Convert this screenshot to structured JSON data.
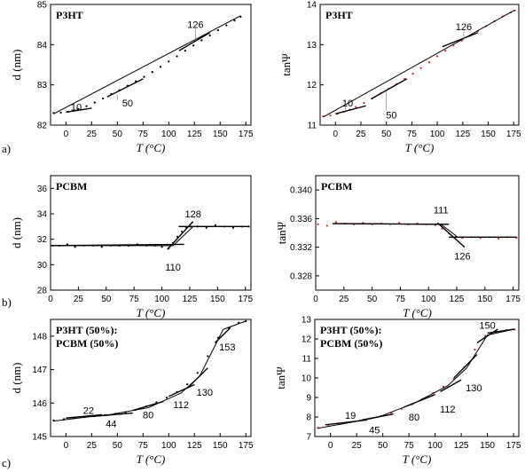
{
  "row_labels": [
    "a)",
    "b)",
    "c)"
  ],
  "chart_data": [
    {
      "type": "scatter",
      "title": [
        "P3HT"
      ],
      "xlabel": "T (°C)",
      "ylabel": "d (nm)",
      "xlim": [
        -15,
        180
      ],
      "ylim": [
        82,
        85
      ],
      "xticks": [
        0,
        25,
        50,
        75,
        100,
        125,
        150,
        175
      ],
      "yticks": [
        82,
        83,
        84,
        85
      ],
      "point_color": "#000000",
      "points": {
        "x": [
          -12,
          -5,
          2,
          8,
          12,
          20,
          28,
          36,
          44,
          52,
          60,
          68,
          76,
          84,
          92,
          100,
          108,
          116,
          124,
          132,
          140,
          148,
          156,
          164,
          170
        ],
        "y": [
          82.3,
          82.31,
          82.33,
          82.36,
          82.4,
          82.47,
          82.56,
          82.66,
          82.77,
          82.87,
          82.98,
          83.09,
          83.2,
          83.32,
          83.45,
          83.58,
          83.71,
          83.85,
          83.98,
          84.11,
          84.23,
          84.36,
          84.48,
          84.6,
          84.69
        ]
      },
      "series": [
        {
          "values_x": [
            -12,
            170
          ],
          "values_y": [
            82.28,
            84.72
          ]
        }
      ],
      "fits": [
        [
          [
            0,
            82.32
          ],
          [
            25,
            82.42
          ]
        ],
        [
          [
            40,
            82.7
          ],
          [
            75,
            83.15
          ]
        ],
        [
          [
            110,
            83.85
          ],
          [
            140,
            84.3
          ]
        ]
      ],
      "annotations": [
        {
          "text": "10",
          "x": 10,
          "y": 82.45,
          "lead": [
            [
              10,
              82.42
            ],
            [
              10,
              82.38
            ]
          ]
        },
        {
          "text": "50",
          "x": 60,
          "y": 82.55,
          "lead": [
            [
              50,
              82.62
            ],
            [
              50,
              82.75
            ]
          ]
        },
        {
          "text": "126",
          "x": 126,
          "y": 84.5,
          "lead": [
            [
              126,
              84.38
            ],
            [
              126,
              84.1
            ]
          ]
        }
      ]
    },
    {
      "type": "scatter",
      "title": [
        "P3HT"
      ],
      "xlabel": "T (°C)",
      "ylabel": "tanΨ",
      "xlim": [
        -15,
        180
      ],
      "ylim": [
        11,
        14
      ],
      "xticks": [
        0,
        25,
        50,
        75,
        100,
        125,
        150,
        175
      ],
      "yticks": [
        11,
        12,
        13,
        14
      ],
      "point_color": "#e0201e",
      "points": {
        "x": [
          -12,
          -5,
          2,
          8,
          14,
          20,
          28,
          36,
          44,
          52,
          60,
          68,
          76,
          84,
          92,
          100,
          108,
          116,
          124,
          132,
          140,
          148,
          156,
          164,
          172,
          176
        ],
        "y": [
          11.22,
          11.24,
          11.28,
          11.33,
          11.38,
          11.45,
          11.55,
          11.66,
          11.78,
          11.9,
          12.02,
          12.15,
          12.28,
          12.42,
          12.56,
          12.71,
          12.85,
          12.98,
          13.1,
          13.22,
          13.34,
          13.46,
          13.58,
          13.7,
          13.8,
          13.85
        ]
      },
      "series": [
        {
          "values_x": [
            -12,
            176
          ],
          "values_y": [
            11.2,
            13.86
          ]
        }
      ],
      "fits": [
        [
          [
            0,
            11.28
          ],
          [
            30,
            11.48
          ]
        ],
        [
          [
            35,
            11.65
          ],
          [
            70,
            12.15
          ]
        ],
        [
          [
            105,
            12.95
          ],
          [
            140,
            13.3
          ]
        ]
      ],
      "annotations": [
        {
          "text": "10",
          "x": 12,
          "y": 11.55,
          "lead": [
            [
              10,
              11.5
            ],
            [
              10,
              11.35
            ]
          ]
        },
        {
          "text": "50",
          "x": 55,
          "y": 11.25,
          "lead": [
            [
              50,
              11.35
            ],
            [
              50,
              11.85
            ]
          ]
        },
        {
          "text": "126",
          "x": 126,
          "y": 13.45,
          "lead": [
            [
              126,
              13.35
            ],
            [
              126,
              13.1
            ]
          ]
        }
      ]
    },
    {
      "type": "scatter",
      "title": [
        "PCBM"
      ],
      "xlabel": "T (°C)",
      "ylabel": "d (nm)",
      "xlim": [
        0,
        180
      ],
      "ylim": [
        28,
        37
      ],
      "xticks": [
        0,
        25,
        50,
        75,
        100,
        125,
        150,
        175
      ],
      "yticks": [
        28,
        30,
        32,
        34,
        36
      ],
      "point_color": "#000000",
      "points": {
        "x": [
          2,
          8,
          15,
          22,
          30,
          38,
          46,
          54,
          62,
          70,
          78,
          86,
          94,
          100,
          106,
          110,
          114,
          118,
          122,
          126,
          132,
          140,
          148,
          156,
          164,
          172,
          178
        ],
        "y": [
          31.5,
          31.5,
          31.6,
          31.4,
          31.5,
          31.5,
          31.4,
          31.5,
          31.5,
          31.5,
          31.6,
          31.5,
          31.5,
          31.4,
          31.3,
          31.7,
          32.2,
          32.6,
          32.9,
          33.0,
          33.0,
          32.9,
          33.1,
          33.0,
          32.9,
          33.0,
          33.0
        ]
      },
      "series": [
        {
          "values_x": [
            0,
            110,
            128,
            178
          ],
          "values_y": [
            31.5,
            31.5,
            33.0,
            33.0
          ]
        }
      ],
      "fits": [
        [
          [
            0,
            31.5
          ],
          [
            120,
            31.6
          ]
        ],
        [
          [
            105,
            31.2
          ],
          [
            128,
            33.4
          ]
        ],
        [
          [
            115,
            33.0
          ],
          [
            178,
            33.0
          ]
        ]
      ],
      "annotations": [
        {
          "text": "128",
          "x": 128,
          "y": 34.0
        },
        {
          "text": "110",
          "x": 110,
          "y": 29.8
        }
      ]
    },
    {
      "type": "scatter",
      "title": [
        "PCBM"
      ],
      "xlabel": "T (°C)",
      "ylabel": "tanΨ",
      "xlim": [
        0,
        180
      ],
      "ylim": [
        0.326,
        0.342
      ],
      "xticks": [
        0,
        25,
        50,
        75,
        100,
        125,
        150,
        175
      ],
      "yticks": [
        0.328,
        0.332,
        0.336,
        0.34
      ],
      "point_color": "#e0201e",
      "points": {
        "x": [
          2,
          10,
          18,
          26,
          34,
          42,
          50,
          58,
          66,
          74,
          82,
          90,
          98,
          106,
          112,
          118,
          124,
          130,
          138,
          146,
          154,
          162,
          170,
          178
        ],
        "y": [
          0.3352,
          0.335,
          0.3355,
          0.3353,
          0.3352,
          0.3354,
          0.3352,
          0.3353,
          0.3352,
          0.3354,
          0.3352,
          0.3353,
          0.3352,
          0.3351,
          0.3346,
          0.3339,
          0.3334,
          0.3333,
          0.3334,
          0.3333,
          0.3334,
          0.3332,
          0.3334,
          0.3333
        ]
      },
      "series": [
        {
          "values_x": [
            15,
            111,
            126,
            178
          ],
          "values_y": [
            0.3353,
            0.3352,
            0.3334,
            0.3334
          ]
        }
      ],
      "fits": [
        [
          [
            15,
            0.3353
          ],
          [
            118,
            0.3352
          ]
        ],
        [
          [
            108,
            0.3354
          ],
          [
            132,
            0.332
          ]
        ],
        [
          [
            118,
            0.3334
          ],
          [
            178,
            0.3334
          ]
        ]
      ],
      "annotations": [
        {
          "text": "111",
          "x": 111,
          "y": 0.3372
        },
        {
          "text": "126",
          "x": 130,
          "y": 0.3308
        }
      ]
    },
    {
      "type": "scatter",
      "title": [
        "P3HT (50%):",
        "PCBM (50%)"
      ],
      "xlabel": "T (°C)",
      "ylabel": "d (nm)",
      "xlim": [
        -15,
        180
      ],
      "ylim": [
        145,
        148.5
      ],
      "xticks": [
        0,
        25,
        50,
        75,
        100,
        125,
        150,
        175
      ],
      "yticks": [
        145,
        146,
        147,
        148
      ],
      "point_color": "#000000",
      "points": {
        "x": [
          -12,
          -2,
          8,
          18,
          28,
          38,
          48,
          58,
          68,
          78,
          88,
          98,
          108,
          118,
          128,
          138,
          148,
          158,
          168,
          175
        ],
        "y": [
          145.48,
          145.52,
          145.55,
          145.58,
          145.61,
          145.64,
          145.68,
          145.73,
          145.8,
          145.9,
          146.02,
          146.16,
          146.33,
          146.56,
          146.9,
          147.4,
          147.95,
          148.25,
          148.4,
          148.45
        ]
      },
      "series": [
        {
          "values_x": [
            -12,
            20,
            44,
            80,
            112,
            130,
            153,
            175
          ],
          "values_y": [
            145.46,
            145.58,
            145.66,
            145.86,
            146.3,
            146.8,
            148.2,
            148.45
          ]
        }
      ],
      "fits": [
        [
          [
            0,
            145.55
          ],
          [
            35,
            145.65
          ]
        ],
        [
          [
            25,
            145.6
          ],
          [
            65,
            145.7
          ]
        ],
        [
          [
            65,
            145.78
          ],
          [
            95,
            146.05
          ]
        ],
        [
          [
            100,
            146.2
          ],
          [
            125,
            146.55
          ]
        ],
        [
          [
            120,
            146.5
          ],
          [
            138,
            147.05
          ]
        ],
        [
          [
            145,
            147.8
          ],
          [
            160,
            148.25
          ]
        ]
      ],
      "annotations": [
        {
          "text": "22",
          "x": 22,
          "y": 145.78
        },
        {
          "text": "44",
          "x": 44,
          "y": 145.38
        },
        {
          "text": "80",
          "x": 80,
          "y": 145.65
        },
        {
          "text": "112",
          "x": 112,
          "y": 145.95
        },
        {
          "text": "130",
          "x": 135,
          "y": 146.32
        },
        {
          "text": "153",
          "x": 157,
          "y": 147.68
        }
      ]
    },
    {
      "type": "scatter",
      "title": [
        "P3HT (50%):",
        "PCBM (50%)"
      ],
      "xlabel": "T (°C)",
      "ylabel": "tanΨ",
      "xlim": [
        -15,
        180
      ],
      "ylim": [
        7,
        13
      ],
      "xticks": [
        0,
        25,
        50,
        75,
        100,
        125,
        150,
        175
      ],
      "yticks": [
        7,
        8,
        9,
        10,
        11,
        12,
        13
      ],
      "point_color": "#e0201e",
      "points": {
        "x": [
          -12,
          -2,
          8,
          18,
          28,
          38,
          48,
          58,
          68,
          78,
          88,
          98,
          108,
          118,
          128,
          138,
          148,
          158,
          168,
          176
        ],
        "y": [
          7.45,
          7.55,
          7.65,
          7.73,
          7.82,
          7.92,
          8.05,
          8.22,
          8.42,
          8.65,
          8.92,
          9.22,
          9.55,
          9.95,
          10.55,
          11.45,
          12.15,
          12.4,
          12.45,
          12.48
        ]
      },
      "series": [
        {
          "values_x": [
            -12,
            19,
            45,
            80,
            112,
            130,
            150,
            176
          ],
          "values_y": [
            7.42,
            7.72,
            7.98,
            8.7,
            9.6,
            10.5,
            12.2,
            12.5
          ]
        }
      ],
      "fits": [
        [
          [
            -5,
            7.6
          ],
          [
            35,
            7.85
          ]
        ],
        [
          [
            30,
            7.85
          ],
          [
            60,
            8.15
          ]
        ],
        [
          [
            70,
            8.5
          ],
          [
            100,
            9.15
          ]
        ],
        [
          [
            105,
            9.3
          ],
          [
            125,
            9.9
          ]
        ],
        [
          [
            118,
            10.0
          ],
          [
            140,
            11.2
          ]
        ],
        [
          [
            140,
            11.8
          ],
          [
            160,
            12.5
          ]
        ],
        [
          [
            150,
            12.3
          ],
          [
            176,
            12.5
          ]
        ]
      ],
      "annotations": [
        {
          "text": "19",
          "x": 19,
          "y": 8.1
        },
        {
          "text": "45",
          "x": 42,
          "y": 7.35
        },
        {
          "text": "80",
          "x": 80,
          "y": 8.0
        },
        {
          "text": "112",
          "x": 112,
          "y": 8.4
        },
        {
          "text": "130",
          "x": 137,
          "y": 9.5
        },
        {
          "text": "150",
          "x": 150,
          "y": 12.7
        }
      ]
    }
  ]
}
